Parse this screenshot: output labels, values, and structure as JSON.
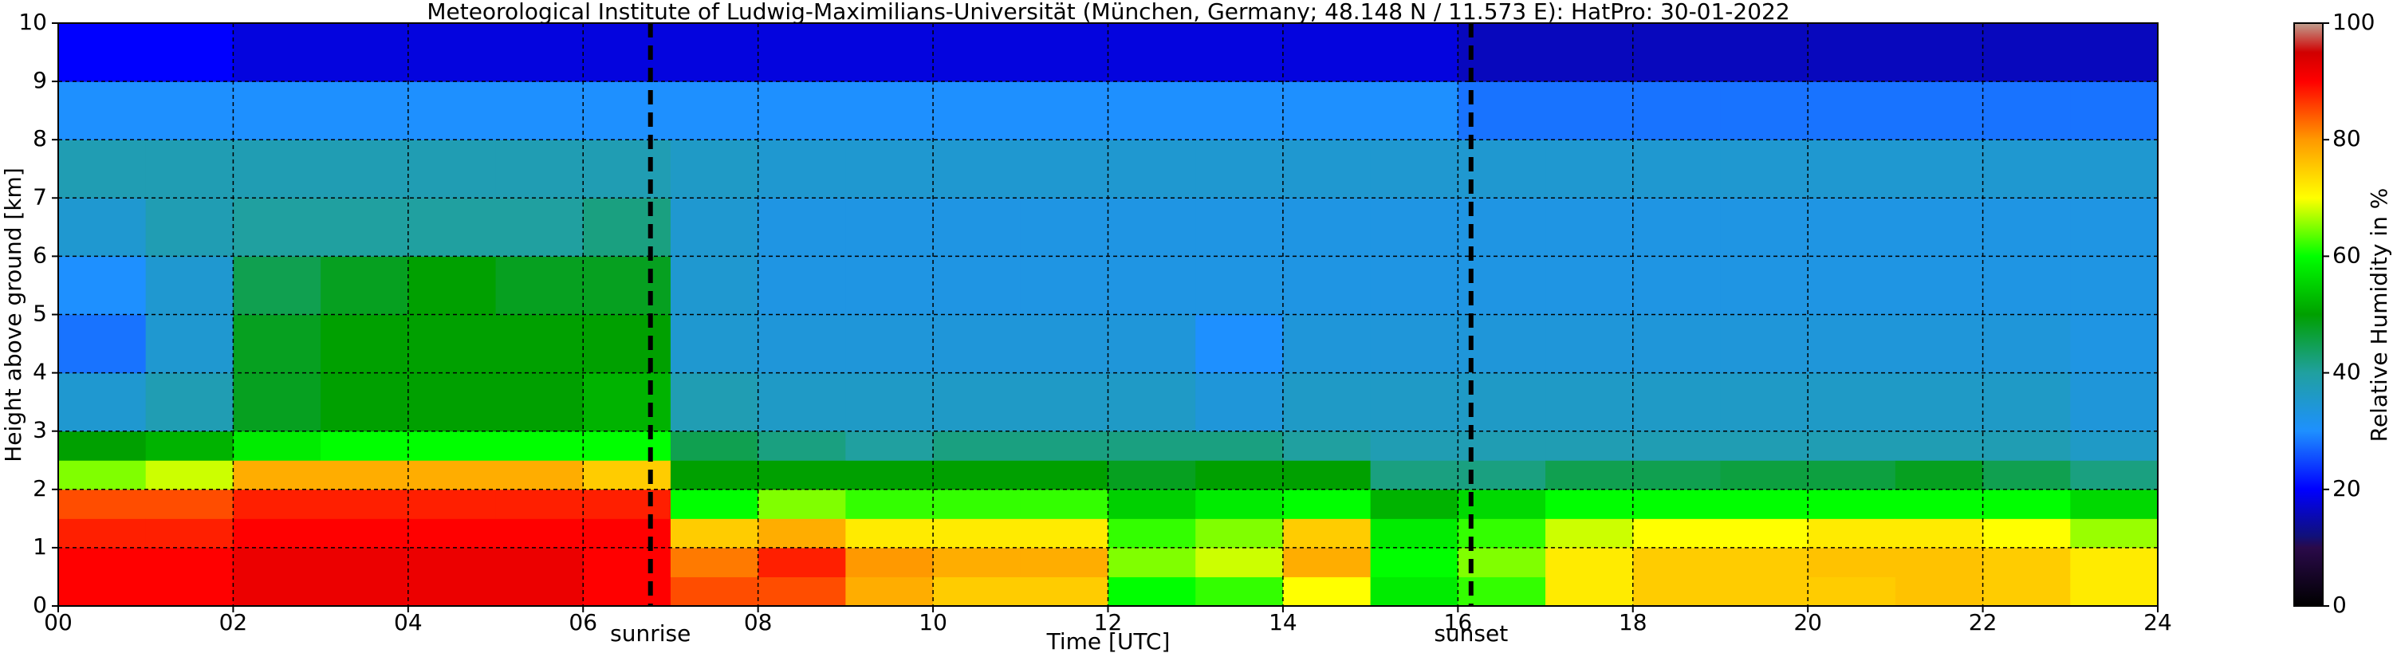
{
  "chart_data": {
    "type": "heatmap",
    "title": "Meteorological Institute of Ludwig-Maximilians-Universität (München, Germany; 48.148 N / 11.573 E):    HatPro: 30-01-2022",
    "x_label": "Time [UTC]",
    "y_label": "Height above ground [km]",
    "colorbar_label": "Relative Humidity in %",
    "x_edges": [
      0,
      1,
      2,
      3,
      4,
      5,
      6,
      7,
      8,
      9,
      10,
      11,
      12,
      13,
      14,
      15,
      16,
      17,
      18,
      19,
      20,
      21,
      22,
      23,
      24
    ],
    "y_edges": [
      0,
      0.5,
      1,
      1.5,
      2,
      2.5,
      3,
      4,
      5,
      6,
      7,
      8,
      9,
      10
    ],
    "z": [
      [
        90,
        90,
        88,
        85,
        65,
        50,
        35,
        28,
        30,
        35,
        38,
        30,
        20
      ],
      [
        90,
        90,
        88,
        85,
        68,
        52,
        38,
        35,
        35,
        38,
        38,
        30,
        20
      ],
      [
        92,
        92,
        90,
        88,
        78,
        58,
        48,
        48,
        45,
        40,
        38,
        30,
        18
      ],
      [
        92,
        92,
        90,
        88,
        78,
        60,
        50,
        50,
        48,
        40,
        38,
        30,
        18
      ],
      [
        92,
        92,
        90,
        88,
        78,
        60,
        50,
        50,
        50,
        40,
        38,
        30,
        18
      ],
      [
        92,
        92,
        90,
        88,
        78,
        60,
        50,
        50,
        48,
        40,
        38,
        30,
        18
      ],
      [
        90,
        90,
        90,
        88,
        75,
        60,
        52,
        50,
        48,
        42,
        38,
        30,
        18
      ],
      [
        85,
        82,
        75,
        60,
        50,
        45,
        38,
        35,
        35,
        35,
        36,
        30,
        18
      ],
      [
        85,
        88,
        78,
        65,
        50,
        42,
        36,
        34,
        33,
        33,
        35,
        30,
        18
      ],
      [
        78,
        80,
        72,
        62,
        50,
        40,
        36,
        34,
        33,
        33,
        35,
        30,
        18
      ],
      [
        75,
        78,
        72,
        62,
        50,
        42,
        36,
        34,
        33,
        33,
        35,
        30,
        18
      ],
      [
        75,
        78,
        72,
        62,
        50,
        42,
        36,
        34,
        33,
        33,
        35,
        30,
        18
      ],
      [
        60,
        65,
        62,
        55,
        48,
        42,
        36,
        34,
        33,
        33,
        35,
        30,
        18
      ],
      [
        62,
        68,
        65,
        58,
        50,
        42,
        34,
        30,
        33,
        33,
        35,
        30,
        18
      ],
      [
        70,
        78,
        75,
        60,
        50,
        40,
        36,
        34,
        33,
        33,
        35,
        30,
        18
      ],
      [
        58,
        60,
        58,
        52,
        42,
        38,
        36,
        34,
        33,
        33,
        35,
        30,
        18
      ],
      [
        62,
        65,
        62,
        56,
        42,
        38,
        36,
        34,
        33,
        33,
        35,
        28,
        16
      ],
      [
        72,
        72,
        68,
        60,
        45,
        38,
        36,
        34,
        33,
        33,
        35,
        28,
        16
      ],
      [
        75,
        75,
        70,
        60,
        45,
        38,
        36,
        34,
        33,
        33,
        35,
        28,
        16
      ],
      [
        75,
        75,
        70,
        60,
        46,
        38,
        36,
        34,
        33,
        33,
        35,
        28,
        16
      ],
      [
        75,
        76,
        72,
        60,
        46,
        38,
        36,
        34,
        33,
        33,
        35,
        28,
        16
      ],
      [
        76,
        76,
        72,
        60,
        48,
        38,
        36,
        34,
        33,
        33,
        35,
        28,
        16
      ],
      [
        75,
        75,
        70,
        60,
        45,
        38,
        36,
        34,
        33,
        33,
        35,
        28,
        16
      ],
      [
        72,
        72,
        66,
        56,
        42,
        36,
        34,
        33,
        33,
        33,
        35,
        28,
        16
      ]
    ],
    "xlim": [
      0,
      24
    ],
    "ylim": [
      0,
      10
    ],
    "zlim": [
      0,
      100
    ],
    "xticks": [
      {
        "value": 0,
        "label": "00"
      },
      {
        "value": 2,
        "label": "02"
      },
      {
        "value": 4,
        "label": "04"
      },
      {
        "value": 6,
        "label": "06"
      },
      {
        "value": 8,
        "label": "08"
      },
      {
        "value": 10,
        "label": "10"
      },
      {
        "value": 12,
        "label": "12"
      },
      {
        "value": 14,
        "label": "14"
      },
      {
        "value": 16,
        "label": "16"
      },
      {
        "value": 18,
        "label": "18"
      },
      {
        "value": 20,
        "label": "20"
      },
      {
        "value": 22,
        "label": "22"
      },
      {
        "value": 24,
        "label": "24"
      }
    ],
    "yticks": [
      0,
      1,
      2,
      3,
      4,
      5,
      6,
      7,
      8,
      9,
      10
    ],
    "zticks": [
      0,
      20,
      40,
      60,
      80,
      100
    ],
    "grid": true,
    "colorscale": [
      [
        0,
        "#000000"
      ],
      [
        10,
        "#2a0a4a"
      ],
      [
        12,
        "#10107a"
      ],
      [
        20,
        "#0000ff"
      ],
      [
        30,
        "#1e90ff"
      ],
      [
        40,
        "#20a0a0"
      ],
      [
        50,
        "#00a000"
      ],
      [
        60,
        "#00ff00"
      ],
      [
        70,
        "#ffff00"
      ],
      [
        80,
        "#ff9900"
      ],
      [
        90,
        "#ff0000"
      ],
      [
        95,
        "#d00000"
      ],
      [
        100,
        "#c0a090"
      ]
    ],
    "annotations": [
      {
        "label": "sunrise",
        "x": 6.77
      },
      {
        "label": "sunset",
        "x": 16.15
      }
    ]
  }
}
